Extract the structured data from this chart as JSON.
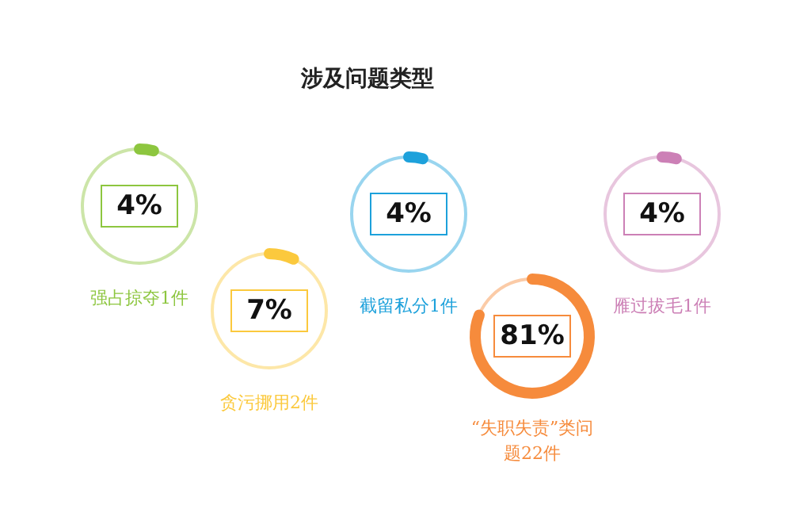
{
  "chart_data": {
    "type": "other",
    "title": "涉及问题类型",
    "categories": [
      "强占掠夺1件",
      "贪污挪用2件",
      "截留私分1件",
      "“失职失责”类问题22件",
      "雁过拔毛1件"
    ],
    "values": [
      4,
      7,
      4,
      81,
      4
    ],
    "value_labels": [
      "4%",
      "7%",
      "4%",
      "81%",
      "4%"
    ],
    "colors": [
      "#8dc63f",
      "#fbc93d",
      "#1da1db",
      "#f68b3c",
      "#cc80b6"
    ]
  }
}
